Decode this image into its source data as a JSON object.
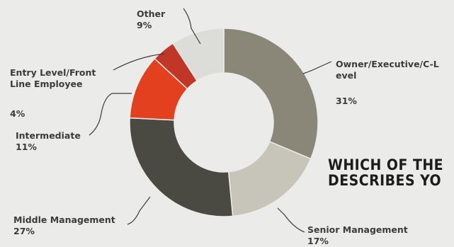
{
  "chart_data": {
    "type": "pie",
    "donut": true,
    "categories": [
      "Owner/Executive/C-Level",
      "Senior Management",
      "Middle Management",
      "Intermediate",
      "Entry Level/Front Line Employee",
      "Other"
    ],
    "values": [
      31,
      17,
      27,
      11,
      4,
      9
    ],
    "labels": [
      {
        "name_lines": [
          "Owner/Executive/C-L",
          "evel"
        ],
        "value": "31%"
      },
      {
        "name_lines": [
          "Senior Management"
        ],
        "value": "17%"
      },
      {
        "name_lines": [
          "Middle Management"
        ],
        "value": "27%"
      },
      {
        "name_lines": [
          "Intermediate"
        ],
        "value": "11%"
      },
      {
        "name_lines": [
          "Entry Level/Front",
          "Line Employee"
        ],
        "value": "4%"
      },
      {
        "name_lines": [
          "Other"
        ],
        "value": "9%"
      }
    ],
    "colors": [
      "#8a8779",
      "#c7c5b9",
      "#4a4942",
      "#e2401f",
      "#c03627",
      "#dcdcd8"
    ],
    "title_lines": [
      "WHICH OF THE",
      "DESCRIBES YO"
    ]
  }
}
